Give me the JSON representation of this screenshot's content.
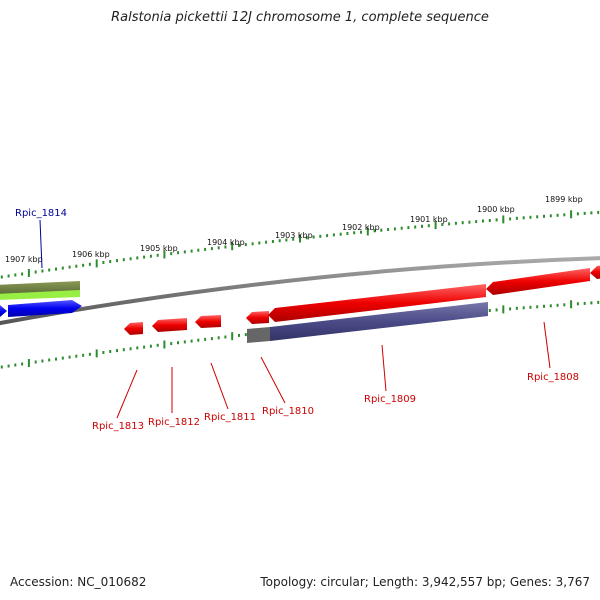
{
  "title": "Ralstonia pickettii 12J chromosome 1, complete sequence",
  "footer": {
    "accession": "Accession: NC_010682",
    "summary": "Topology: circular; Length: 3,942,557 bp; Genes: 3,767"
  },
  "colors": {
    "backbone": "#808080",
    "tick": "#2e8b2e",
    "forward_gene": "#0000ee",
    "reverse_gene": "#ee0000",
    "cds_bar": "#55558e",
    "highlight": "#99ee44",
    "label_forward": "#000099",
    "label_reverse": "#cc0000"
  },
  "scale_labels": [
    "1907 kbp",
    "1906 kbp",
    "1905 kbp",
    "1904 kbp",
    "1903 kbp",
    "1902 kbp",
    "1901 kbp",
    "1900 kbp",
    "1899 kbp"
  ],
  "genes": [
    {
      "name": "Rpic_1814",
      "strand": "forward"
    },
    {
      "name": "Rpic_1813",
      "strand": "reverse"
    },
    {
      "name": "Rpic_1812",
      "strand": "reverse"
    },
    {
      "name": "Rpic_1811",
      "strand": "reverse"
    },
    {
      "name": "Rpic_1810",
      "strand": "reverse"
    },
    {
      "name": "Rpic_1809",
      "strand": "reverse"
    },
    {
      "name": "Rpic_1808",
      "strand": "reverse"
    }
  ]
}
